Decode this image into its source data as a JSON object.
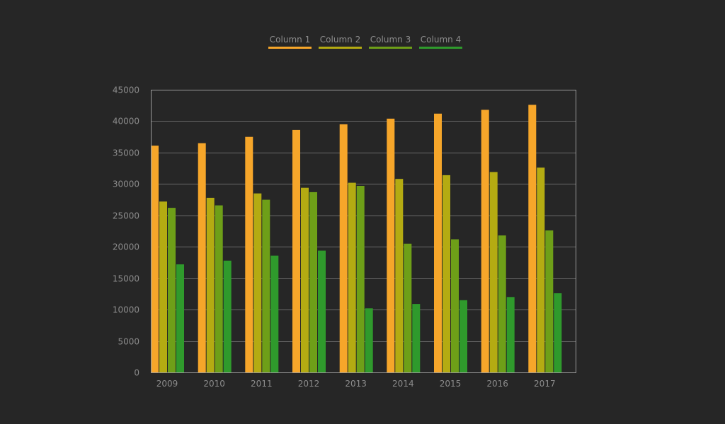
{
  "chart_data": {
    "type": "bar",
    "title": "",
    "xlabel": "",
    "ylabel": "",
    "categories": [
      "2009",
      "2010",
      "2011",
      "2012",
      "2013",
      "2014",
      "2015",
      "2016",
      "2017"
    ],
    "series": [
      {
        "name": "Column 1",
        "color": "#f6a62a",
        "values": [
          36100,
          36500,
          37500,
          38600,
          39500,
          40400,
          41200,
          41800,
          42600
        ]
      },
      {
        "name": "Column 2",
        "color": "#b4ab12",
        "values": [
          27200,
          27800,
          28500,
          29400,
          30200,
          30800,
          31400,
          31900,
          32600
        ]
      },
      {
        "name": "Column 3",
        "color": "#6e9f18",
        "values": [
          26200,
          26600,
          27500,
          28700,
          29700,
          20500,
          21200,
          21800,
          22600
        ]
      },
      {
        "name": "Column 4",
        "color": "#2f9a2c",
        "values": [
          17200,
          17800,
          18600,
          19400,
          10200,
          10900,
          11500,
          12000,
          12600
        ]
      }
    ],
    "ylim": [
      0,
      45000
    ],
    "yticks": [
      0,
      5000,
      10000,
      15000,
      20000,
      25000,
      30000,
      35000,
      40000,
      45000
    ],
    "grid": true,
    "legend": "top-center"
  }
}
